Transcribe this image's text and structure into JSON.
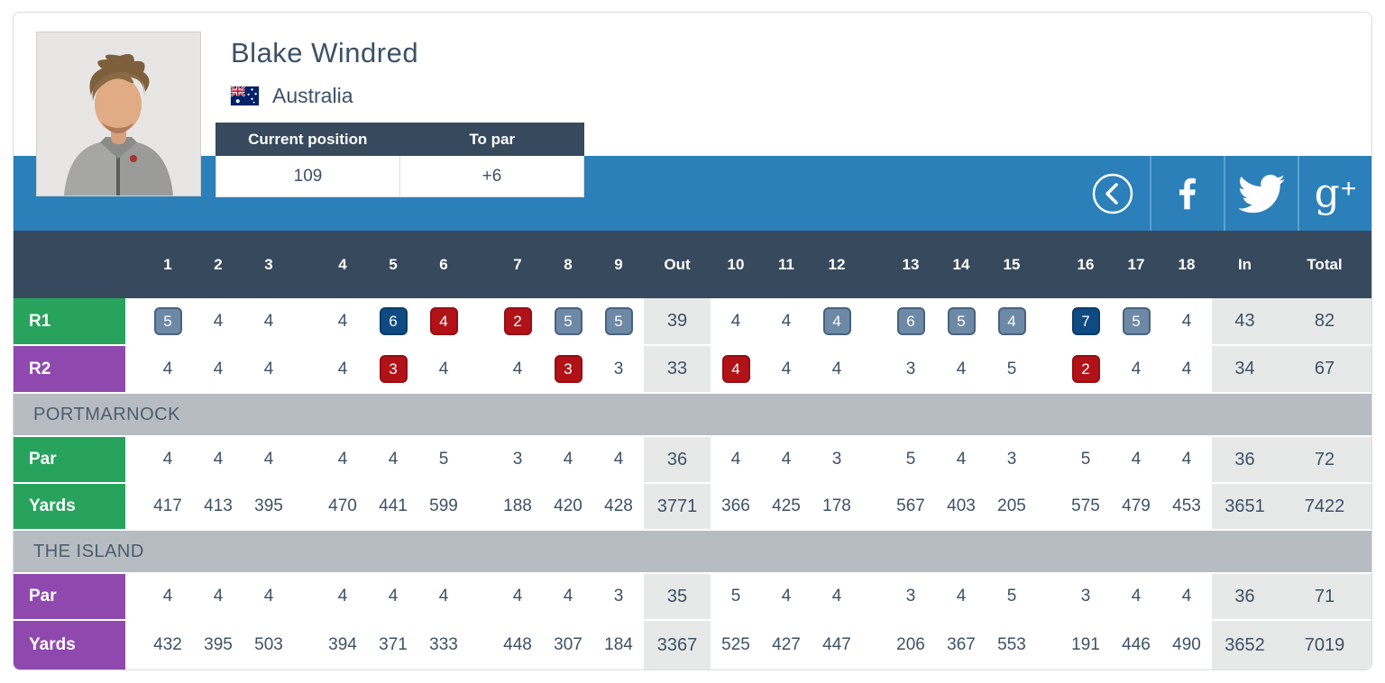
{
  "player": {
    "name": "Blake Windred",
    "country": "Australia"
  },
  "stats": {
    "position_label": "Current position",
    "position_value": "109",
    "to_par_label": "To par",
    "to_par_value": "+6"
  },
  "social": {
    "items": [
      {
        "name": "back",
        "icon": "chevron-left-circle-icon"
      },
      {
        "name": "facebook",
        "icon": "facebook-icon"
      },
      {
        "name": "twitter",
        "icon": "twitter-bird-icon"
      },
      {
        "name": "google-plus",
        "icon": "google-plus-icon",
        "label_g": "g",
        "label_plus": "+"
      }
    ]
  },
  "table": {
    "header": {
      "front_holes": [
        "1",
        "2",
        "3",
        "4",
        "5",
        "6",
        "7",
        "8",
        "9"
      ],
      "out_label": "Out",
      "back_holes": [
        "10",
        "11",
        "12",
        "13",
        "14",
        "15",
        "16",
        "17",
        "18"
      ],
      "in_label": "In",
      "total_label": "Total"
    },
    "rows": [
      {
        "kind": "scores",
        "label": "R1",
        "theme": "green",
        "front": [
          {
            "v": "5",
            "b": "bogey"
          },
          {
            "v": "4"
          },
          {
            "v": "4"
          },
          {
            "v": "4"
          },
          {
            "v": "6",
            "b": "double"
          },
          {
            "v": "4",
            "b": "birdie"
          },
          {
            "v": "2",
            "b": "birdie"
          },
          {
            "v": "5",
            "b": "bogey"
          },
          {
            "v": "5",
            "b": "bogey"
          }
        ],
        "out": "39",
        "back": [
          {
            "v": "4"
          },
          {
            "v": "4"
          },
          {
            "v": "4",
            "b": "bogey"
          },
          {
            "v": "6",
            "b": "bogey"
          },
          {
            "v": "5",
            "b": "bogey"
          },
          {
            "v": "4",
            "b": "bogey"
          },
          {
            "v": "7",
            "b": "double"
          },
          {
            "v": "5",
            "b": "bogey"
          },
          {
            "v": "4"
          }
        ],
        "in": "43",
        "total": "82"
      },
      {
        "kind": "scores",
        "label": "R2",
        "theme": "purple",
        "front": [
          {
            "v": "4"
          },
          {
            "v": "4"
          },
          {
            "v": "4"
          },
          {
            "v": "4"
          },
          {
            "v": "3",
            "b": "birdie"
          },
          {
            "v": "4"
          },
          {
            "v": "4"
          },
          {
            "v": "3",
            "b": "birdie"
          },
          {
            "v": "3"
          }
        ],
        "out": "33",
        "back": [
          {
            "v": "4",
            "b": "birdie"
          },
          {
            "v": "4"
          },
          {
            "v": "4"
          },
          {
            "v": "3"
          },
          {
            "v": "4"
          },
          {
            "v": "5"
          },
          {
            "v": "2",
            "b": "birdie"
          },
          {
            "v": "4"
          },
          {
            "v": "4"
          }
        ],
        "in": "34",
        "total": "67"
      },
      {
        "kind": "section",
        "title": "PORTMARNOCK"
      },
      {
        "kind": "plain",
        "label": "Par",
        "theme": "green",
        "front": [
          {
            "v": "4"
          },
          {
            "v": "4"
          },
          {
            "v": "4"
          },
          {
            "v": "4"
          },
          {
            "v": "4"
          },
          {
            "v": "5"
          },
          {
            "v": "3"
          },
          {
            "v": "4"
          },
          {
            "v": "4"
          }
        ],
        "out": "36",
        "back": [
          {
            "v": "4"
          },
          {
            "v": "4"
          },
          {
            "v": "3"
          },
          {
            "v": "5"
          },
          {
            "v": "4"
          },
          {
            "v": "3"
          },
          {
            "v": "5"
          },
          {
            "v": "4"
          },
          {
            "v": "4"
          }
        ],
        "in": "36",
        "total": "72"
      },
      {
        "kind": "plain",
        "label": "Yards",
        "theme": "green",
        "front": [
          {
            "v": "417"
          },
          {
            "v": "413"
          },
          {
            "v": "395"
          },
          {
            "v": "470"
          },
          {
            "v": "441"
          },
          {
            "v": "599"
          },
          {
            "v": "188"
          },
          {
            "v": "420"
          },
          {
            "v": "428"
          }
        ],
        "out": "3771",
        "back": [
          {
            "v": "366"
          },
          {
            "v": "425"
          },
          {
            "v": "178"
          },
          {
            "v": "567"
          },
          {
            "v": "403"
          },
          {
            "v": "205"
          },
          {
            "v": "575"
          },
          {
            "v": "479"
          },
          {
            "v": "453"
          }
        ],
        "in": "3651",
        "total": "7422"
      },
      {
        "kind": "section",
        "title": "THE ISLAND"
      },
      {
        "kind": "plain",
        "label": "Par",
        "theme": "purple",
        "front": [
          {
            "v": "4"
          },
          {
            "v": "4"
          },
          {
            "v": "4"
          },
          {
            "v": "4"
          },
          {
            "v": "4"
          },
          {
            "v": "4"
          },
          {
            "v": "4"
          },
          {
            "v": "4"
          },
          {
            "v": "3"
          }
        ],
        "out": "35",
        "back": [
          {
            "v": "5"
          },
          {
            "v": "4"
          },
          {
            "v": "4"
          },
          {
            "v": "3"
          },
          {
            "v": "4"
          },
          {
            "v": "5"
          },
          {
            "v": "3"
          },
          {
            "v": "4"
          },
          {
            "v": "4"
          }
        ],
        "in": "36",
        "total": "71"
      },
      {
        "kind": "plain",
        "label": "Yards",
        "theme": "purple",
        "front": [
          {
            "v": "432"
          },
          {
            "v": "395"
          },
          {
            "v": "503"
          },
          {
            "v": "394"
          },
          {
            "v": "371"
          },
          {
            "v": "333"
          },
          {
            "v": "448"
          },
          {
            "v": "307"
          },
          {
            "v": "184"
          }
        ],
        "out": "3367",
        "back": [
          {
            "v": "525"
          },
          {
            "v": "427"
          },
          {
            "v": "447"
          },
          {
            "v": "206"
          },
          {
            "v": "367"
          },
          {
            "v": "553"
          },
          {
            "v": "191"
          },
          {
            "v": "446"
          },
          {
            "v": "490"
          }
        ],
        "in": "3652",
        "total": "7019"
      }
    ]
  },
  "badge_legend": {
    "bogey": "gray-blue badge",
    "double": "navy badge (double bogey or worse)",
    "birdie": "red badge"
  },
  "colors": {
    "navy": "#36495d",
    "blue_band": "#2b80b9",
    "green": "#27a35d",
    "purple": "#8f49ae",
    "text": "#3d5166",
    "section_gray": "#b6bcc1",
    "agg_cell_gray": "#e7e9e9",
    "bogey_badge": "#6e89a5",
    "double_badge": "#0f4a82",
    "birdie_badge": "#b11217"
  }
}
